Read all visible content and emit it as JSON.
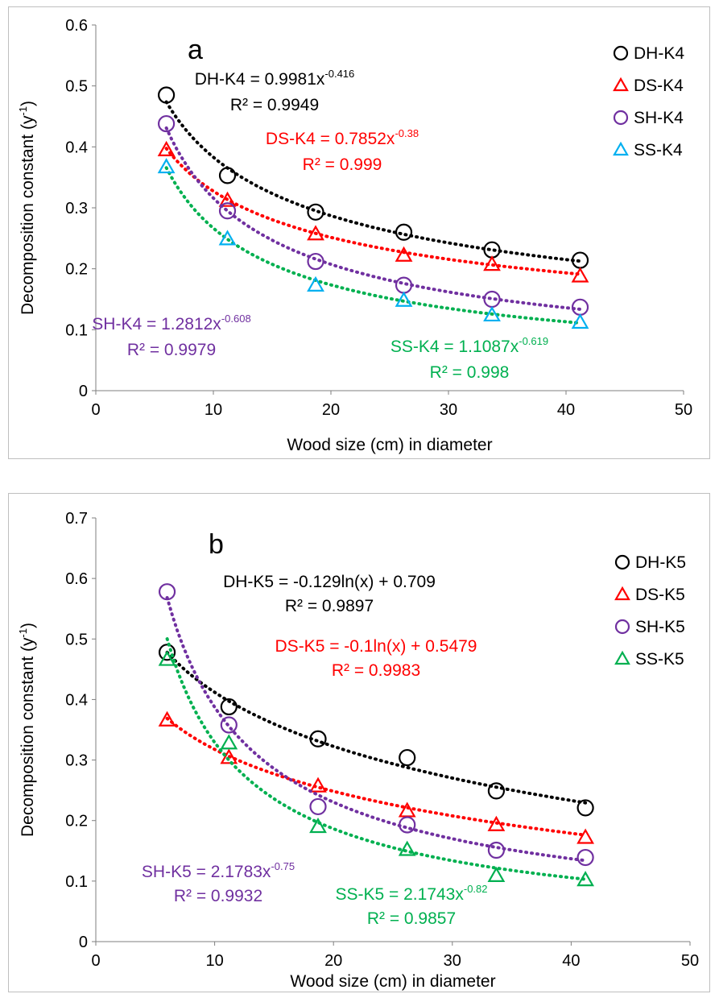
{
  "chart_data": [
    {
      "type": "scatter",
      "panel_label": "a",
      "xlabel": "Wood size (cm) in diameter",
      "ylabel": "Decomposition constant (y",
      "ylabel_sup": "-1",
      "ylabel_close": ")",
      "xlim": [
        0,
        50
      ],
      "ylim": [
        0,
        0.6
      ],
      "xticks": [
        0,
        10,
        20,
        30,
        40,
        50
      ],
      "yticks": [
        0,
        0.1,
        0.2,
        0.3,
        0.4,
        0.5,
        0.6
      ],
      "grid": false,
      "legend_position": "top-right",
      "x": [
        6,
        11.2,
        18.7,
        26.2,
        33.7,
        41.2
      ],
      "series": [
        {
          "name": "DH-K4",
          "marker": "circle",
          "color": "#000000",
          "trend_color": "#000000",
          "values": [
            0.485,
            0.353,
            0.293,
            0.26,
            0.231,
            0.214
          ],
          "fit": {
            "kind": "power",
            "a": 0.9981,
            "b": -0.416
          },
          "equation": {
            "lhs": "DH-K4 = 0.9981x",
            "sup": "-0.416",
            "r2": "R² = 0.9949",
            "color": "#000000"
          }
        },
        {
          "name": "DS-K4",
          "marker": "triangle",
          "color": "#ff0000",
          "trend_color": "#ff0000",
          "values": [
            0.395,
            0.312,
            0.257,
            0.222,
            0.207,
            0.188
          ],
          "fit": {
            "kind": "power",
            "a": 0.7852,
            "b": -0.38
          },
          "equation": {
            "lhs": "DS-K4 = 0.7852x",
            "sup": "-0.38",
            "r2": "R² = 0.999",
            "color": "#ff0000"
          }
        },
        {
          "name": "SH-K4",
          "marker": "circle",
          "color": "#7030a0",
          "trend_color": "#7030a0",
          "values": [
            0.438,
            0.295,
            0.212,
            0.173,
            0.15,
            0.137
          ],
          "fit": {
            "kind": "power",
            "a": 1.2812,
            "b": -0.608
          },
          "equation": {
            "lhs": "SH-K4 = 1.2812x",
            "sup": "-0.608",
            "r2": "R² = 0.9979",
            "color": "#7030a0"
          }
        },
        {
          "name": "SS-K4",
          "marker": "triangle",
          "color": "#00b0f0",
          "trend_color": "#00b050",
          "values": [
            0.367,
            0.249,
            0.173,
            0.148,
            0.124,
            0.112
          ],
          "fit": {
            "kind": "power",
            "a": 1.1087,
            "b": -0.619
          },
          "equation": {
            "lhs": "SS-K4 = 1.1087x",
            "sup": "-0.619",
            "r2": "R² = 0.998",
            "color": "#00b050"
          }
        }
      ]
    },
    {
      "type": "scatter",
      "panel_label": "b",
      "xlabel": "Wood size (cm) in diameter",
      "ylabel": "Decomposition constant (y",
      "ylabel_sup": "-1",
      "ylabel_close": ")",
      "xlim": [
        0,
        50
      ],
      "ylim": [
        0,
        0.7
      ],
      "xticks": [
        0,
        10,
        20,
        30,
        40,
        50
      ],
      "yticks": [
        0,
        0.1,
        0.2,
        0.3,
        0.4,
        0.5,
        0.6,
        0.7
      ],
      "grid": false,
      "legend_position": "top-right",
      "x": [
        6,
        11.2,
        18.7,
        26.2,
        33.7,
        41.2
      ],
      "series": [
        {
          "name": "DH-K5",
          "marker": "circle",
          "color": "#000000",
          "trend_color": "#000000",
          "values": [
            0.478,
            0.388,
            0.335,
            0.304,
            0.249,
            0.221
          ],
          "fit": {
            "kind": "log",
            "a": -0.129,
            "b": 0.709
          },
          "equation": {
            "lhs": "DH-K5 = -0.129ln(x)  + 0.709",
            "sup": "",
            "r2": "R² = 0.9897",
            "color": "#000000"
          }
        },
        {
          "name": "DS-K5",
          "marker": "triangle",
          "color": "#ff0000",
          "trend_color": "#ff0000",
          "values": [
            0.366,
            0.304,
            0.257,
            0.216,
            0.193,
            0.172
          ],
          "fit": {
            "kind": "log",
            "a": -0.1,
            "b": 0.5479
          },
          "equation": {
            "lhs": "DS-K5 = -0.1ln(x)  + 0.5479",
            "sup": "",
            "r2": "R² = 0.9983",
            "color": "#ff0000"
          }
        },
        {
          "name": "SH-K5",
          "marker": "circle",
          "color": "#7030a0",
          "trend_color": "#7030a0",
          "values": [
            0.578,
            0.358,
            0.223,
            0.193,
            0.151,
            0.139
          ],
          "fit": {
            "kind": "power",
            "a": 2.1783,
            "b": -0.75
          },
          "equation": {
            "lhs": "SH-K5 = 2.1783x",
            "sup": "-0.75",
            "r2": "R² = 0.9932",
            "color": "#7030a0"
          }
        },
        {
          "name": "SS-K5",
          "marker": "triangle",
          "color": "#00b050",
          "trend_color": "#00b050",
          "values": [
            0.466,
            0.328,
            0.19,
            0.152,
            0.109,
            0.102
          ],
          "fit": {
            "kind": "power",
            "a": 2.1743,
            "b": -0.82
          },
          "equation": {
            "lhs": "SS-K5 = 2.1743x",
            "sup": "-0.82",
            "r2": "R² = 0.9857",
            "color": "#00b050"
          }
        }
      ]
    }
  ]
}
